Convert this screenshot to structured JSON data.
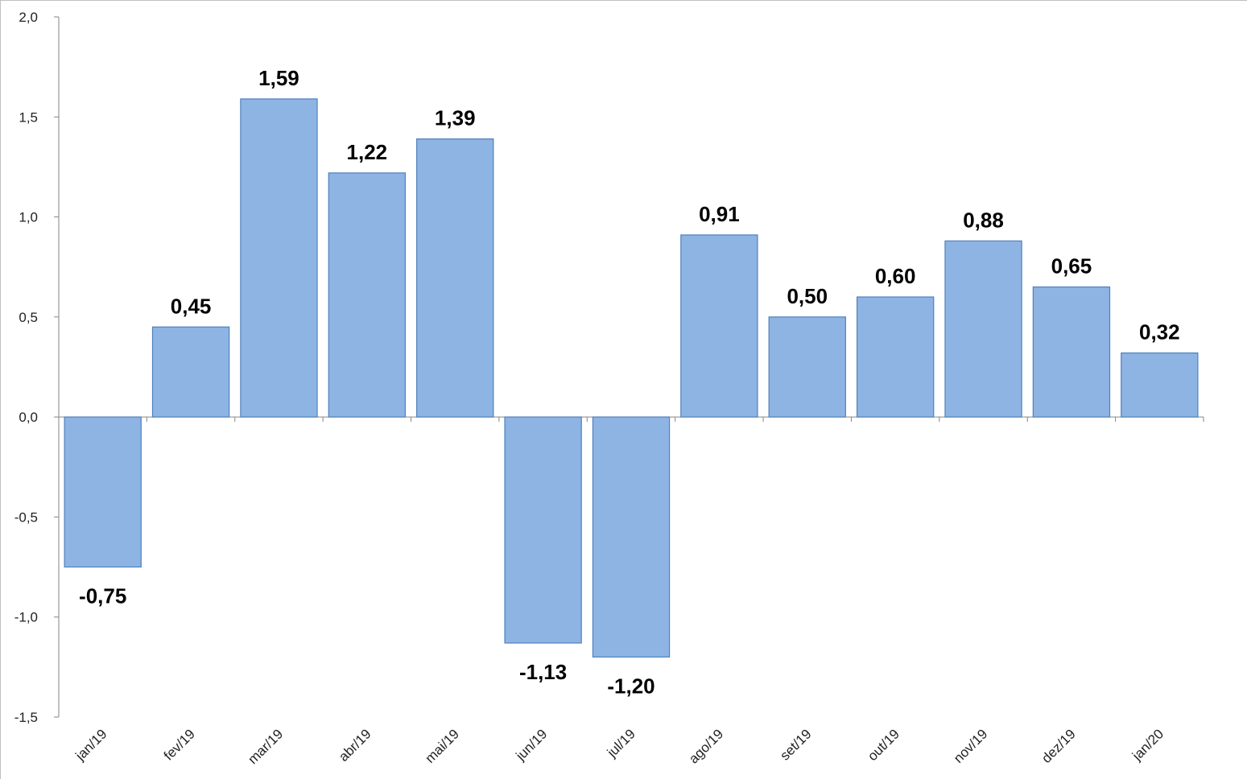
{
  "chart_data": {
    "type": "bar",
    "title": "",
    "xlabel": "",
    "ylabel": "",
    "categories": [
      "jan/19",
      "fev/19",
      "mar/19",
      "abr/19",
      "mai/19",
      "jun/19",
      "jul/19",
      "ago/19",
      "set/19",
      "out/19",
      "nov/19",
      "dez/19",
      "jan/20"
    ],
    "values": [
      -0.75,
      0.45,
      1.59,
      1.22,
      1.39,
      -1.13,
      -1.2,
      0.91,
      0.5,
      0.6,
      0.88,
      0.65,
      0.32
    ],
    "data_labels": [
      "-0,75",
      "0,45",
      "1,59",
      "1,22",
      "1,39",
      "-1,13",
      "-1,20",
      "0,91",
      "0,50",
      "0,60",
      "0,88",
      "0,65",
      "0,32"
    ],
    "yticks": [
      2.0,
      1.5,
      1.0,
      0.5,
      0.0,
      -0.5,
      -1.0,
      -1.5
    ],
    "ytick_labels": [
      "2,0",
      "1,5",
      "1,0",
      "0,5",
      "0,0",
      "-0,5",
      "-1,0",
      "-1,5"
    ],
    "ylim": [
      -1.5,
      2.0
    ],
    "grid": false,
    "legend": "none",
    "colors": {
      "bar_fill": "#8EB4E3",
      "bar_stroke": "#4F81BD",
      "axis": "#868686",
      "frame": "#BFBFBF"
    }
  }
}
